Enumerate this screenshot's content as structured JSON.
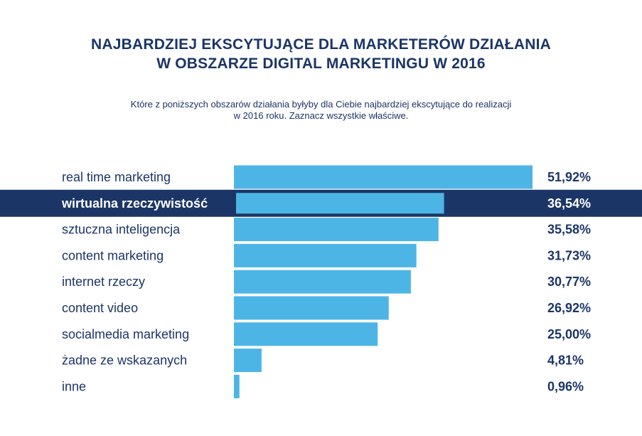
{
  "chart_data": {
    "type": "bar",
    "orientation": "horizontal",
    "title_lines": [
      "NAJBARDZIEJ EKSCYTUJĄCE DLA MARKETERÓW DZIAŁANIA",
      "W OBSZARZE DIGITAL MARKETINGU W 2016"
    ],
    "subtitle_lines": [
      "Które z poniższych obszarów działania byłyby dla Ciebie najbardziej ekscytujące do realizacji",
      "w 2016 roku. Zaznacz wszystkie właściwe."
    ],
    "categories": [
      "real time marketing",
      "wirtualna rzeczywistość",
      "sztuczna inteligencja",
      "content marketing",
      "internet rzeczy",
      "content video",
      "socialmedia marketing",
      "żadne ze wskazanych",
      "inne"
    ],
    "values": [
      51.92,
      36.54,
      35.58,
      31.73,
      30.77,
      26.92,
      25.0,
      4.81,
      0.96
    ],
    "value_labels": [
      "51,92%",
      "36,54%",
      "35,58%",
      "31,73%",
      "30,77%",
      "26,92%",
      "25,00%",
      "4,81%",
      "0,96%"
    ],
    "highlight_index": 1,
    "xlim": [
      0,
      51.92
    ],
    "unit": "%"
  },
  "colors": {
    "bar": "#4db5e6",
    "highlight_band": "#1b3566",
    "title": "#1b3566",
    "label": "#1b3566",
    "highlight_text": "#ffffff"
  }
}
